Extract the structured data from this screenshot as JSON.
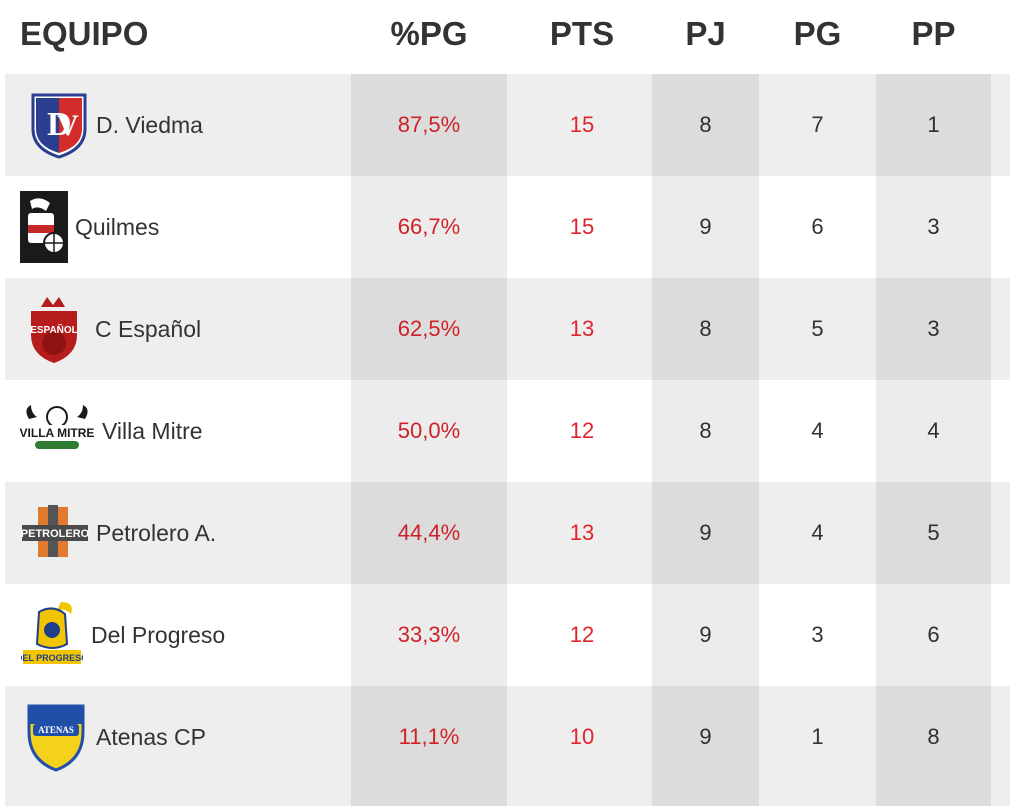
{
  "header": {
    "team": "EQUIPO",
    "pct": "%PG",
    "pts": "PTS",
    "pj": "PJ",
    "pg": "PG",
    "pp": "PP"
  },
  "colors": {
    "accent_red": "#e0252c",
    "row_alt": "#eeeeee",
    "text": "#333333"
  },
  "rows": [
    {
      "team": "D. Viedma",
      "logo_icon": "deportivo-viedma-shield-icon",
      "pct": "87,5%",
      "pts": "15",
      "pj": "8",
      "pg": "7",
      "pp": "1"
    },
    {
      "team": "Quilmes",
      "logo_icon": "quilmes-crest-icon",
      "pct": "66,7%",
      "pts": "15",
      "pj": "9",
      "pg": "6",
      "pp": "3"
    },
    {
      "team": "C Español",
      "logo_icon": "club-espanol-crest-icon",
      "pct": "62,5%",
      "pts": "13",
      "pj": "8",
      "pg": "5",
      "pp": "3"
    },
    {
      "team": "Villa Mitre",
      "logo_icon": "villa-mitre-crest-icon",
      "pct": "50,0%",
      "pts": "12",
      "pj": "8",
      "pg": "4",
      "pp": "4"
    },
    {
      "team": "Petrolero A.",
      "logo_icon": "petrolero-crest-icon",
      "pct": "44,4%",
      "pts": "13",
      "pj": "9",
      "pg": "4",
      "pp": "5"
    },
    {
      "team": "Del Progreso",
      "logo_icon": "del-progreso-crest-icon",
      "pct": "33,3%",
      "pts": "12",
      "pj": "9",
      "pg": "3",
      "pp": "6"
    },
    {
      "team": "Atenas CP",
      "logo_icon": "atenas-crest-icon",
      "pct": "11,1%",
      "pts": "10",
      "pj": "9",
      "pg": "1",
      "pp": "8"
    }
  ],
  "logo_texts": {
    "espanol": "ESPAÑOL",
    "villa_mitre": "VILLA MITRE",
    "petrolero": "PETROLERO",
    "del_progreso": "DEL PROGRESO",
    "atenas": "ATENAS"
  }
}
